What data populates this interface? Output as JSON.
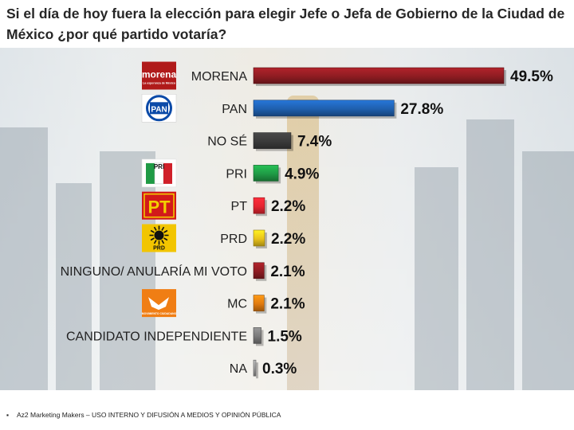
{
  "title": "Si el día de hoy fuera la elección para elegir Jefe o Jefa de Gobierno de la Ciudad de México ¿por qué partido votaría?",
  "footer": "Az2 Marketing Makers – USO INTERNO Y DIFUSIÓN A MEDIOS Y OPINIÓN PÚBLICA",
  "logos": {
    "morena": {
      "name": "morena",
      "tagline": "La esperanza de México",
      "color": "#b01a1a"
    },
    "pan": {
      "name": "PAN",
      "color": "#0b4aa8"
    },
    "pri": {
      "name": "PRI",
      "color": "#d0202a"
    },
    "pt": {
      "name": "PT",
      "color": "#d21a1a"
    },
    "prd": {
      "name": "PRD",
      "color": "#f2c500"
    },
    "mc": {
      "name": "MOVIMIENTO CIUDADANO",
      "color": "#f07e14"
    }
  },
  "chart_data": {
    "type": "bar",
    "orientation": "horizontal",
    "categories": [
      "MORENA",
      "PAN",
      "NO SÉ",
      "PRI",
      "PT",
      "PRD",
      "NINGUNO/ ANULARÍA MI VOTO",
      "MC",
      "CANDIDATO INDEPENDIENTE",
      "NA"
    ],
    "values": [
      49.5,
      27.8,
      7.4,
      4.9,
      2.2,
      2.2,
      2.1,
      2.1,
      1.5,
      0.3
    ],
    "labels": [
      "49.5%",
      "27.8%",
      "7.4%",
      "4.9%",
      "2.2%",
      "2.2%",
      "2.1%",
      "2.1%",
      "1.5%",
      "0.3%"
    ],
    "colors": [
      "#8e1c22",
      "#1f5fae",
      "#3a3a3a",
      "#1f9a45",
      "#e52530",
      "#e9c21a",
      "#8e1c22",
      "#e07b10",
      "#7a7a7a",
      "#9a9a9a"
    ],
    "logos": [
      "morena",
      "pan",
      null,
      "pri",
      "pt",
      "prd",
      null,
      "mc",
      null,
      null
    ],
    "xlim": [
      0,
      49.5
    ],
    "grid": false,
    "legend": "none"
  }
}
